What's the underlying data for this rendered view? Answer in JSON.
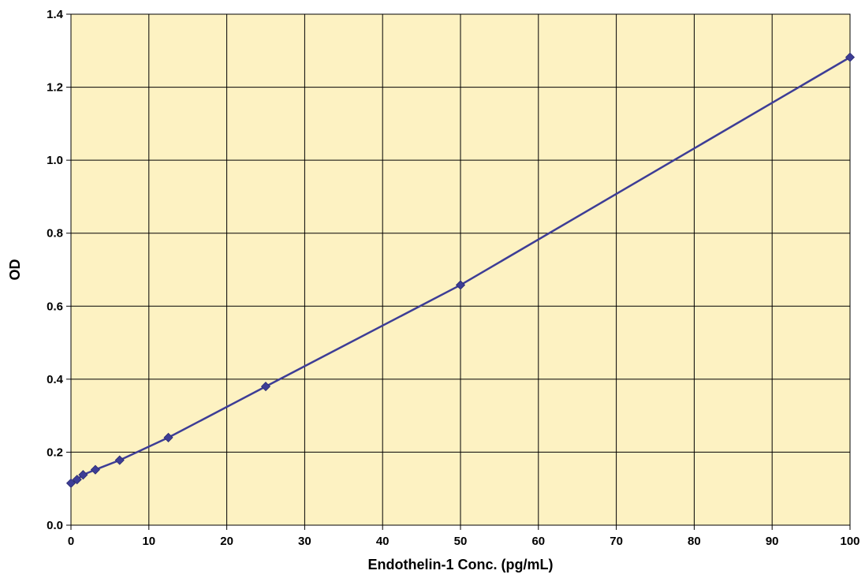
{
  "chart_data": {
    "type": "line",
    "title": "",
    "xlabel": "Endothelin-1 Conc. (pg/mL)",
    "ylabel": "OD",
    "xlim": [
      0,
      100
    ],
    "ylim": [
      0,
      1.4
    ],
    "x_ticks": [
      "0",
      "10",
      "20",
      "30",
      "40",
      "50",
      "60",
      "70",
      "80",
      "90",
      "100"
    ],
    "y_ticks": [
      "0.0",
      "0.2",
      "0.4",
      "0.6",
      "0.8",
      "1.0",
      "1.2",
      "1.4"
    ],
    "x_tick_values": [
      0,
      10,
      20,
      30,
      40,
      50,
      60,
      70,
      80,
      90,
      100
    ],
    "y_tick_values": [
      0,
      0.2,
      0.4,
      0.6,
      0.8,
      1.0,
      1.2,
      1.4
    ],
    "grid": true,
    "legend": "none",
    "series": [
      {
        "x": [
          0,
          0.78,
          1.56,
          3.13,
          6.25,
          12.5,
          25,
          50,
          100
        ],
        "y": [
          0.115,
          0.125,
          0.138,
          0.152,
          0.178,
          0.24,
          0.38,
          0.658,
          1.282
        ]
      }
    ],
    "colors": {
      "plot_background": "#fdf2c2",
      "grid": "#000000",
      "line": "#3d3d96",
      "marker": "#3d3d96"
    }
  }
}
